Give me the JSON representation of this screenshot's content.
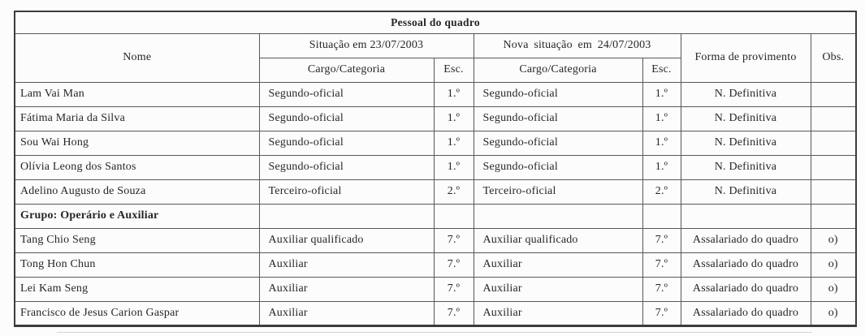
{
  "colors": {
    "background": "#fcfcfc",
    "text": "#262626",
    "border_outer": "#3c3c3c",
    "border_inner": "#585858"
  },
  "table": {
    "title": "Pessoal do quadro",
    "headers": {
      "nome": "Nome",
      "situacao": "Situação em 23/07/2003",
      "nova_situacao": "Nova situação em 24/07/2003",
      "cargo_antes": "Cargo/Categoria",
      "esc_antes": "Esc.",
      "cargo_depois": "Cargo/Categoria",
      "esc_depois": "Esc.",
      "forma": "Forma de provimento",
      "obs": "Obs."
    },
    "rows": [
      {
        "bold": false,
        "cells": [
          "Lam Vai Man",
          "Segundo-oficial",
          "1.º",
          "Segundo-oficial",
          "1.º",
          "N. Definitiva",
          ""
        ]
      },
      {
        "bold": false,
        "cells": [
          "Fátima Maria da Silva",
          "Segundo-oficial",
          "1.º",
          "Segundo-oficial",
          "1.º",
          "N. Definitiva",
          ""
        ]
      },
      {
        "bold": false,
        "cells": [
          "Sou Wai Hong",
          "Segundo-oficial",
          "1.º",
          "Segundo-oficial",
          "1.º",
          "N. Definitiva",
          ""
        ]
      },
      {
        "bold": false,
        "cells": [
          "Olívia Leong dos Santos",
          "Segundo-oficial",
          "1.º",
          "Segundo-oficial",
          "1.º",
          "N. Definitiva",
          ""
        ]
      },
      {
        "bold": false,
        "cells": [
          "Adelino Augusto de Souza",
          "Terceiro-oficial",
          "2.º",
          "Terceiro-oficial",
          "2.º",
          "N. Definitiva",
          ""
        ]
      },
      {
        "bold": true,
        "cells": [
          "Grupo: Operário e Auxiliar",
          "",
          "",
          "",
          "",
          "",
          ""
        ]
      },
      {
        "bold": false,
        "cells": [
          "Tang Chio Seng",
          "Auxiliar qualificado",
          "7.º",
          "Auxiliar qualificado",
          "7.º",
          "Assalariado do quadro",
          "o)"
        ]
      },
      {
        "bold": false,
        "cells": [
          "Tong Hon Chun",
          "Auxiliar",
          "7.º",
          "Auxiliar",
          "7.º",
          "Assalariado do quadro",
          "o)"
        ]
      },
      {
        "bold": false,
        "cells": [
          "Lei Kam Seng",
          "Auxiliar",
          "7.º",
          "Auxiliar",
          "7.º",
          "Assalariado do quadro",
          "o)"
        ]
      },
      {
        "bold": false,
        "cells": [
          "Francisco de Jesus Carion Gaspar",
          "Auxiliar",
          "7.º",
          "Auxiliar",
          "7.º",
          "Assalariado do quadro",
          "o)"
        ]
      }
    ]
  }
}
